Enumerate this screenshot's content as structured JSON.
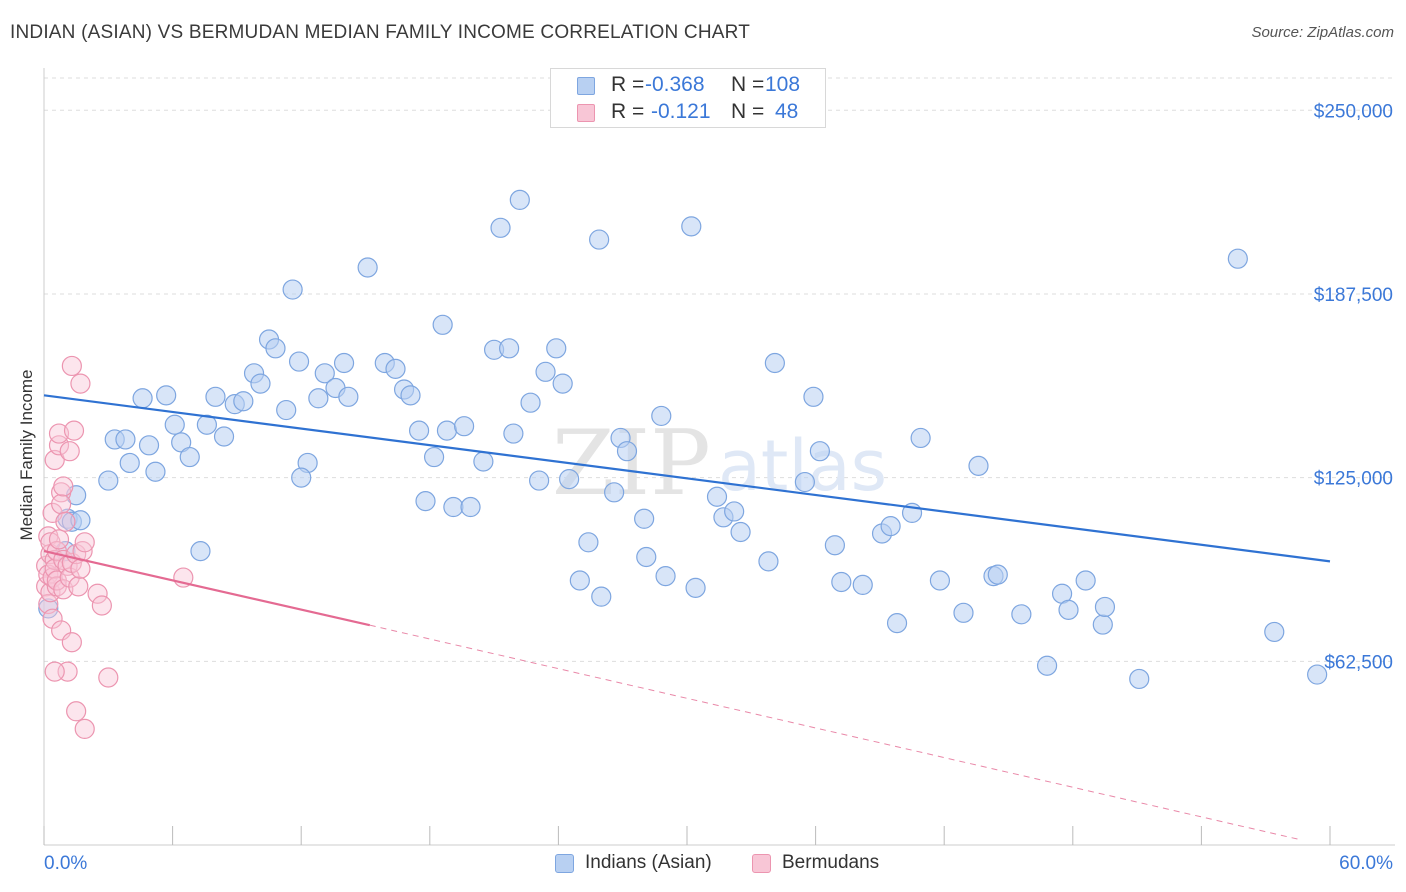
{
  "header": {
    "title": "INDIAN (ASIAN) VS BERMUDAN MEDIAN FAMILY INCOME CORRELATION CHART",
    "source": "Source: ZipAtlas.com"
  },
  "stats_legend": [
    {
      "r_label": "R =",
      "r_value": "-0.368",
      "n_label": "N =",
      "n_value": "108",
      "swatch_fill": "#b8d0f2",
      "swatch_stroke": "#7ea6e0"
    },
    {
      "r_label": "R =",
      "r_value": "-0.121",
      "n_label": "N =",
      "n_value": "48",
      "swatch_fill": "#f8c6d6",
      "swatch_stroke": "#ec95b0"
    }
  ],
  "bottom_legend": [
    {
      "label": "Indians (Asian)",
      "fill": "#b8d0f2",
      "stroke": "#7ea6e0"
    },
    {
      "label": "Bermudans",
      "fill": "#f8c6d6",
      "stroke": "#ec95b0"
    }
  ],
  "colors": {
    "blue_series": "#7ea6e0",
    "blue_fill": "#b8d0f2",
    "blue_line": "#2f72d2",
    "pink_series": "#ec95b0",
    "pink_fill": "#f8c6d6",
    "pink_line": "#e46a92",
    "axis_label": "#3b78d8",
    "grid": "#dddddd",
    "watermark": "#e6e6e6"
  },
  "watermark": {
    "part1": "ZIP",
    "part2": "atlas"
  },
  "chart_data": {
    "type": "scatter",
    "title": "INDIAN (ASIAN) VS BERMUDAN MEDIAN FAMILY INCOME CORRELATION CHART",
    "xlabel": "",
    "ylabel": "Median Family Income",
    "xlim": [
      0,
      60
    ],
    "ylim": [
      0,
      262000
    ],
    "x_tick_labels": [
      "0.0%",
      "60.0%"
    ],
    "y_ticks": [
      62500,
      125000,
      187500,
      250000
    ],
    "y_tick_labels": [
      "$62,500",
      "$125,000",
      "$187,500",
      "$250,000"
    ],
    "grid": true,
    "legend_position": "top-center",
    "series": [
      {
        "name": "Indians (Asian)",
        "r": -0.368,
        "n": 108,
        "trend": {
          "x": [
            0,
            60
          ],
          "y": [
            153000,
            96500
          ],
          "dashed_from": null
        },
        "points": [
          [
            0.2,
            80500
          ],
          [
            1.0,
            100000
          ],
          [
            1.1,
            111000
          ],
          [
            1.3,
            110000
          ],
          [
            1.5,
            119000
          ],
          [
            1.7,
            110500
          ],
          [
            3.0,
            124000
          ],
          [
            3.3,
            138000
          ],
          [
            3.8,
            138000
          ],
          [
            4.0,
            130000
          ],
          [
            4.6,
            152000
          ],
          [
            4.9,
            136000
          ],
          [
            5.2,
            127000
          ],
          [
            5.7,
            153000
          ],
          [
            6.1,
            143000
          ],
          [
            6.4,
            137000
          ],
          [
            6.8,
            132000
          ],
          [
            7.3,
            100000
          ],
          [
            7.6,
            143000
          ],
          [
            8.0,
            152500
          ],
          [
            8.4,
            139000
          ],
          [
            8.9,
            150000
          ],
          [
            9.3,
            151000
          ],
          [
            9.8,
            160500
          ],
          [
            10.1,
            157000
          ],
          [
            10.5,
            172000
          ],
          [
            10.8,
            169000
          ],
          [
            11.3,
            148000
          ],
          [
            11.6,
            189000
          ],
          [
            11.9,
            164500
          ],
          [
            12.3,
            130000
          ],
          [
            12.8,
            152000
          ],
          [
            13.1,
            160500
          ],
          [
            13.6,
            155500
          ],
          [
            14.0,
            164000
          ],
          [
            14.2,
            152500
          ],
          [
            15.1,
            196500
          ],
          [
            15.9,
            164000
          ],
          [
            16.4,
            162000
          ],
          [
            16.8,
            155000
          ],
          [
            17.1,
            153000
          ],
          [
            17.5,
            141000
          ],
          [
            17.8,
            117000
          ],
          [
            18.2,
            132000
          ],
          [
            18.6,
            177000
          ],
          [
            18.8,
            141000
          ],
          [
            19.1,
            115000
          ],
          [
            19.6,
            142500
          ],
          [
            19.9,
            115000
          ],
          [
            20.5,
            130500
          ],
          [
            21.0,
            168500
          ],
          [
            21.3,
            210000
          ],
          [
            21.7,
            169000
          ],
          [
            22.2,
            219500
          ],
          [
            22.7,
            150500
          ],
          [
            23.1,
            124000
          ],
          [
            23.4,
            161000
          ],
          [
            23.9,
            169000
          ],
          [
            24.2,
            157000
          ],
          [
            24.5,
            124500
          ],
          [
            25.0,
            90000
          ],
          [
            25.4,
            103000
          ],
          [
            25.9,
            206000
          ],
          [
            26.6,
            120000
          ],
          [
            26.9,
            138500
          ],
          [
            27.2,
            134000
          ],
          [
            28.0,
            111000
          ],
          [
            28.1,
            98000
          ],
          [
            28.8,
            146000
          ],
          [
            29.0,
            91500
          ],
          [
            30.2,
            210500
          ],
          [
            30.4,
            87500
          ],
          [
            31.4,
            118500
          ],
          [
            31.7,
            111500
          ],
          [
            32.2,
            113500
          ],
          [
            32.5,
            106500
          ],
          [
            33.8,
            96500
          ],
          [
            34.1,
            164000
          ],
          [
            35.5,
            123500
          ],
          [
            35.9,
            152500
          ],
          [
            36.2,
            134000
          ],
          [
            36.9,
            102000
          ],
          [
            37.2,
            89500
          ],
          [
            38.2,
            88500
          ],
          [
            39.1,
            106000
          ],
          [
            39.5,
            108500
          ],
          [
            39.8,
            75500
          ],
          [
            40.5,
            113000
          ],
          [
            40.9,
            138500
          ],
          [
            41.8,
            90000
          ],
          [
            42.9,
            79000
          ],
          [
            43.6,
            129000
          ],
          [
            44.3,
            91500
          ],
          [
            44.5,
            92000
          ],
          [
            45.6,
            78500
          ],
          [
            46.8,
            61000
          ],
          [
            47.5,
            85500
          ],
          [
            47.8,
            80000
          ],
          [
            48.6,
            90000
          ],
          [
            49.4,
            75000
          ],
          [
            49.5,
            81000
          ],
          [
            51.1,
            56500
          ],
          [
            55.7,
            199500
          ],
          [
            57.4,
            72500
          ],
          [
            59.4,
            58000
          ],
          [
            21.9,
            140000
          ],
          [
            12.0,
            125000
          ],
          [
            26.0,
            84500
          ]
        ]
      },
      {
        "name": "Bermudans",
        "r": -0.121,
        "n": 48,
        "trend": {
          "x": [
            0,
            15.2
          ],
          "y": [
            100000,
            74800
          ],
          "dashed_to": [
            58.5,
            2000
          ]
        },
        "points": [
          [
            0.1,
            95000
          ],
          [
            0.1,
            88000
          ],
          [
            0.2,
            92000
          ],
          [
            0.2,
            105000
          ],
          [
            0.2,
            82000
          ],
          [
            0.3,
            99000
          ],
          [
            0.3,
            86000
          ],
          [
            0.3,
            103000
          ],
          [
            0.4,
            77000
          ],
          [
            0.4,
            91000
          ],
          [
            0.4,
            113000
          ],
          [
            0.5,
            97000
          ],
          [
            0.5,
            94000
          ],
          [
            0.5,
            131000
          ],
          [
            0.6,
            88000
          ],
          [
            0.6,
            100000
          ],
          [
            0.6,
            90000
          ],
          [
            0.7,
            104000
          ],
          [
            0.7,
            136000
          ],
          [
            0.7,
            140000
          ],
          [
            0.8,
            120000
          ],
          [
            0.8,
            116000
          ],
          [
            0.8,
            73000
          ],
          [
            0.9,
            122000
          ],
          [
            0.9,
            87000
          ],
          [
            0.9,
            97000
          ],
          [
            1.0,
            110000
          ],
          [
            1.1,
            59000
          ],
          [
            1.1,
            95000
          ],
          [
            1.2,
            134000
          ],
          [
            1.2,
            91000
          ],
          [
            1.3,
            96000
          ],
          [
            1.3,
            69000
          ],
          [
            1.4,
            141000
          ],
          [
            1.5,
            99000
          ],
          [
            1.5,
            45500
          ],
          [
            1.6,
            88000
          ],
          [
            1.7,
            157000
          ],
          [
            1.7,
            94000
          ],
          [
            1.8,
            100000
          ],
          [
            1.9,
            103000
          ],
          [
            1.9,
            39500
          ],
          [
            2.5,
            85500
          ],
          [
            2.7,
            81500
          ],
          [
            3.0,
            57000
          ],
          [
            6.5,
            91000
          ],
          [
            0.5,
            59000
          ],
          [
            1.3,
            163000
          ]
        ]
      }
    ]
  }
}
